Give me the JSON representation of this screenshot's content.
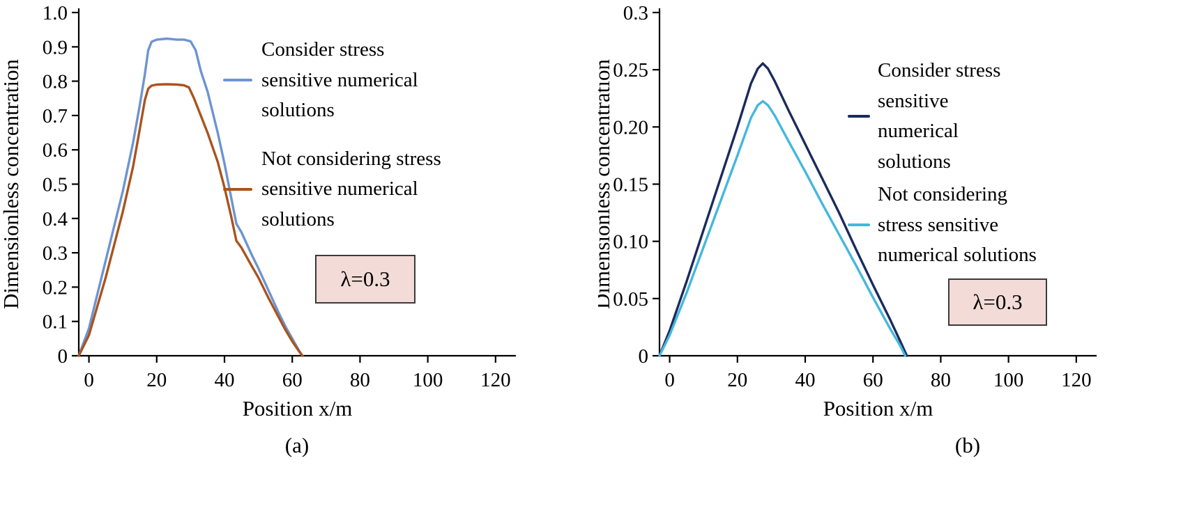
{
  "figure": {
    "background": "#ffffff",
    "panel_count": 2
  },
  "chart_data": [
    {
      "type": "line",
      "caption": "(a)",
      "xlabel": "Position x/m",
      "ylabel": "Dimensionless concentration",
      "xlim": [
        -3,
        126
      ],
      "ylim": [
        0,
        1.0
      ],
      "grid": false,
      "legend_position": "inside-upper-right",
      "x_ticks": [
        0,
        20,
        40,
        60,
        80,
        100,
        120
      ],
      "x_tick_labels": [
        "0",
        "20",
        "40",
        "60",
        "80",
        "100",
        "120"
      ],
      "y_ticks": [
        0,
        0.1,
        0.2,
        0.3,
        0.4,
        0.5,
        0.6,
        0.7,
        0.8,
        0.9,
        1.0
      ],
      "y_tick_labels": [
        "0",
        "0.1",
        "0.2",
        "0.3",
        "0.4",
        "0.5",
        "0.6",
        "0.7",
        "0.8",
        "0.9",
        "1.0"
      ],
      "annotation": {
        "text": "λ=0.3",
        "bg_color": "#f3dbd7",
        "border_color": "#3a3a3a"
      },
      "series": [
        {
          "name": "Consider stress sensitive numerical solutions",
          "label_lines": [
            "Consider stress",
            "sensitive numerical",
            "solutions"
          ],
          "color": "#6d94d1",
          "points": [
            [
              -3,
              0
            ],
            [
              0,
              0.08
            ],
            [
              5,
              0.28
            ],
            [
              10,
              0.48
            ],
            [
              13,
              0.62
            ],
            [
              15,
              0.73
            ],
            [
              16.5,
              0.82
            ],
            [
              17.5,
              0.89
            ],
            [
              18.5,
              0.915
            ],
            [
              20,
              0.921
            ],
            [
              23,
              0.924
            ],
            [
              26,
              0.921
            ],
            [
              28,
              0.921
            ],
            [
              30,
              0.916
            ],
            [
              31.5,
              0.89
            ],
            [
              33,
              0.83
            ],
            [
              35,
              0.77
            ],
            [
              38,
              0.65
            ],
            [
              40,
              0.56
            ],
            [
              42,
              0.46
            ],
            [
              43.5,
              0.385
            ],
            [
              45,
              0.36
            ],
            [
              48,
              0.295
            ],
            [
              50,
              0.255
            ],
            [
              53,
              0.19
            ],
            [
              56,
              0.125
            ],
            [
              58,
              0.085
            ],
            [
              60,
              0.05
            ],
            [
              62,
              0.015
            ],
            [
              63,
              0
            ]
          ]
        },
        {
          "name": "Not considering stress sensitive numerical solutions",
          "label_lines": [
            "Not considering stress",
            "sensitive numerical",
            "solutions"
          ],
          "color": "#a8541e",
          "points": [
            [
              -3,
              0
            ],
            [
              0,
              0.06
            ],
            [
              5,
              0.23
            ],
            [
              10,
              0.42
            ],
            [
              13,
              0.55
            ],
            [
              15,
              0.66
            ],
            [
              16.5,
              0.745
            ],
            [
              17.5,
              0.778
            ],
            [
              18.5,
              0.787
            ],
            [
              20,
              0.79
            ],
            [
              23,
              0.791
            ],
            [
              26,
              0.79
            ],
            [
              28,
              0.788
            ],
            [
              29.5,
              0.782
            ],
            [
              31,
              0.75
            ],
            [
              33,
              0.7
            ],
            [
              35,
              0.65
            ],
            [
              38,
              0.565
            ],
            [
              40,
              0.49
            ],
            [
              42,
              0.405
            ],
            [
              43.5,
              0.335
            ],
            [
              45,
              0.315
            ],
            [
              48,
              0.262
            ],
            [
              50,
              0.228
            ],
            [
              53,
              0.168
            ],
            [
              56,
              0.112
            ],
            [
              58,
              0.075
            ],
            [
              60,
              0.042
            ],
            [
              62,
              0.013
            ],
            [
              63,
              0
            ]
          ]
        }
      ]
    },
    {
      "type": "line",
      "caption": "(b)",
      "xlabel": "Position x/m",
      "ylabel": "Dimensionless concentration",
      "xlim": [
        -3,
        126
      ],
      "ylim": [
        0,
        0.3
      ],
      "grid": false,
      "legend_position": "inside-upper-right",
      "x_ticks": [
        0,
        20,
        40,
        60,
        80,
        100,
        120
      ],
      "x_tick_labels": [
        "0",
        "20",
        "40",
        "60",
        "80",
        "100",
        "120"
      ],
      "y_ticks": [
        0,
        0.05,
        0.1,
        0.15,
        0.2,
        0.25,
        0.3
      ],
      "y_tick_labels": [
        "0",
        "0.05",
        "0.10",
        "0.15",
        "0.20",
        "0.25",
        "0.3"
      ],
      "annotation": {
        "text": "λ=0.3",
        "bg_color": "#f3dbd7",
        "border_color": "#3a3a3a"
      },
      "series": [
        {
          "name": "Consider stress sensitive numerical solutions",
          "label_lines": [
            "Consider stress",
            "sensitive",
            "numerical",
            "solutions"
          ],
          "color": "#1a2b5c",
          "points": [
            [
              -3,
              0
            ],
            [
              0,
              0.022
            ],
            [
              5,
              0.065
            ],
            [
              10,
              0.11
            ],
            [
              15,
              0.155
            ],
            [
              20,
              0.2
            ],
            [
              24,
              0.238
            ],
            [
              26,
              0.251
            ],
            [
              27.5,
              0.2555
            ],
            [
              29,
              0.251
            ],
            [
              31,
              0.24
            ],
            [
              35,
              0.215
            ],
            [
              40,
              0.185
            ],
            [
              45,
              0.155
            ],
            [
              50,
              0.125
            ],
            [
              55,
              0.093
            ],
            [
              60,
              0.062
            ],
            [
              65,
              0.032
            ],
            [
              68,
              0.013
            ],
            [
              70,
              0
            ]
          ]
        },
        {
          "name": "Not considering stress sensitive numerical solutions",
          "label_lines": [
            "Not considering",
            "stress sensitive",
            "numerical solutions"
          ],
          "color": "#45b7dc",
          "points": [
            [
              -3,
              0
            ],
            [
              0,
              0.018
            ],
            [
              5,
              0.055
            ],
            [
              10,
              0.095
            ],
            [
              15,
              0.135
            ],
            [
              20,
              0.175
            ],
            [
              24,
              0.208
            ],
            [
              26,
              0.219
            ],
            [
              27.5,
              0.2225
            ],
            [
              29,
              0.219
            ],
            [
              31,
              0.21
            ],
            [
              35,
              0.188
            ],
            [
              40,
              0.161
            ],
            [
              45,
              0.133
            ],
            [
              50,
              0.106
            ],
            [
              55,
              0.079
            ],
            [
              60,
              0.051
            ],
            [
              65,
              0.024
            ],
            [
              68,
              0.009
            ],
            [
              69.5,
              0
            ]
          ]
        }
      ]
    }
  ]
}
